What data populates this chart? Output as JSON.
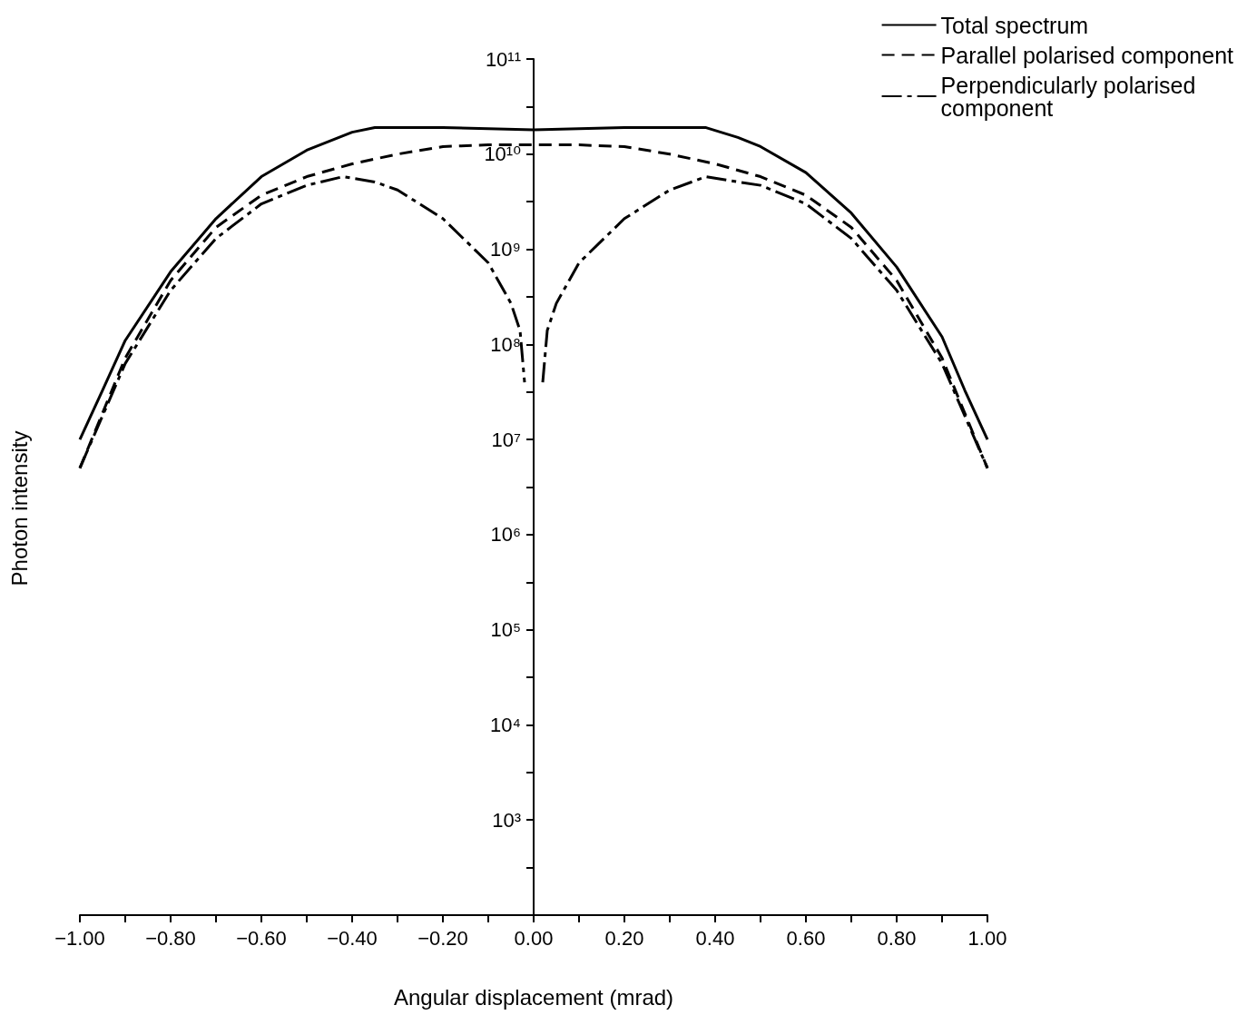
{
  "chart_data": {
    "type": "line",
    "xlabel": "Angular displacement (mrad)",
    "ylabel": "Photon intensity",
    "log": "y",
    "legend": "top right",
    "grid": false,
    "marker": "none",
    "xlim": [
      -1,
      1
    ],
    "xticks": [
      {
        "value": -1,
        "label": "−1.00"
      },
      {
        "value": -0.9,
        "label": null
      },
      {
        "value": -0.8,
        "label": "−0.80"
      },
      {
        "value": -0.7,
        "label": null
      },
      {
        "value": -0.6,
        "label": "−0.60"
      },
      {
        "value": -0.5,
        "label": null
      },
      {
        "value": -0.4,
        "label": "−0.40"
      },
      {
        "value": -0.3,
        "label": null
      },
      {
        "value": -0.2,
        "label": "−0.20"
      },
      {
        "value": -0.1,
        "label": null
      },
      {
        "value": 0,
        "label": "0.00"
      },
      {
        "value": 0.1,
        "label": null
      },
      {
        "value": 0.2,
        "label": "0.20"
      },
      {
        "value": 0.3,
        "label": null
      },
      {
        "value": 0.4,
        "label": "0.40"
      },
      {
        "value": 0.5,
        "label": null
      },
      {
        "value": 0.6,
        "label": "0.60"
      },
      {
        "value": 0.7,
        "label": null
      },
      {
        "value": 0.8,
        "label": "0.80"
      },
      {
        "value": 0.9,
        "label": null
      },
      {
        "value": 1,
        "label": "1.00"
      }
    ],
    "ylim": [
      100,
      100000000000
    ],
    "yticks": [
      {
        "value": 100,
        "label": null
      },
      {
        "value": 316,
        "label": null
      },
      {
        "value": 1000,
        "label": "10³"
      },
      {
        "value": 3162,
        "label": null
      },
      {
        "value": 10000,
        "label": "10⁴"
      },
      {
        "value": 31623,
        "label": null
      },
      {
        "value": 100000,
        "label": "10⁵"
      },
      {
        "value": 316228,
        "label": null
      },
      {
        "value": 1000000,
        "label": "10⁶"
      },
      {
        "value": 3162278,
        "label": null
      },
      {
        "value": 10000000,
        "label": "10⁷"
      },
      {
        "value": 31622777,
        "label": null
      },
      {
        "value": 100000000,
        "label": "10⁸"
      },
      {
        "value": 316227766,
        "label": null
      },
      {
        "value": 1000000000,
        "label": "10⁹"
      },
      {
        "value": 3162277660,
        "label": null
      },
      {
        "value": 10000000000,
        "label": "10¹⁰"
      },
      {
        "value": 31622776602,
        "label": null
      },
      {
        "value": 100000000000,
        "label": "10¹¹"
      }
    ],
    "series": [
      {
        "name": "Total spectrum",
        "color": "#000000",
        "line_style": "solid",
        "x": [
          -1,
          -0.95,
          -0.9,
          -0.8,
          -0.7,
          -0.6,
          -0.5,
          -0.4,
          -0.35,
          -0.2,
          0,
          0.2,
          0.38,
          0.45,
          0.5,
          0.6,
          0.7,
          0.8,
          0.9,
          0.95,
          1
        ],
        "values": [
          10000000,
          33000000,
          110000000,
          580000000,
          2100000000,
          5800000000,
          11000000000,
          17000000000,
          19000000000,
          19000000000,
          18000000000,
          19000000000,
          19000000000,
          15000000000,
          12000000000,
          6400000000,
          2400000000,
          650000000,
          120000000,
          33000000,
          10000000
        ]
      },
      {
        "name": "Parallel polarised component",
        "color": "#000000",
        "line_style": "dashed",
        "x": [
          -1,
          -0.9,
          -0.8,
          -0.7,
          -0.6,
          -0.5,
          -0.4,
          -0.3,
          -0.2,
          -0.1,
          0,
          0.1,
          0.2,
          0.3,
          0.4,
          0.5,
          0.6,
          0.7,
          0.8,
          0.9,
          1
        ],
        "values": [
          5000000,
          72000000,
          470000000,
          1700000000,
          3700000000,
          5800000000,
          7900000000,
          10000000000,
          12000000000,
          12500000000,
          12500000000,
          12500000000,
          12000000000,
          10000000000,
          7900000000,
          5800000000,
          3700000000,
          1700000000,
          470000000,
          72000000,
          5000000
        ]
      },
      {
        "name": "Perpendicularly polarised component",
        "color": "#000000",
        "line_style": "dashdot",
        "x": [
          -1,
          -0.9,
          -0.8,
          -0.7,
          -0.6,
          -0.5,
          -0.42,
          -0.35,
          -0.3,
          -0.2,
          -0.1,
          -0.05,
          -0.03,
          -0.02,
          0,
          0.02,
          0.03,
          0.05,
          0.1,
          0.2,
          0.3,
          0.38,
          0.45,
          0.5,
          0.6,
          0.7,
          0.8,
          0.9,
          1
        ],
        "values": [
          5000000,
          63000000,
          370000000,
          1300000000,
          3000000000,
          4700000000,
          5800000000,
          5100000000,
          4200000000,
          2100000000,
          720000000,
          270000000,
          140000000,
          40000000,
          null,
          40000000,
          140000000,
          270000000,
          720000000,
          2100000000,
          4200000000,
          5800000000,
          5100000000,
          4700000000,
          3000000000,
          1300000000,
          370000000,
          63000000,
          5000000
        ]
      }
    ]
  }
}
